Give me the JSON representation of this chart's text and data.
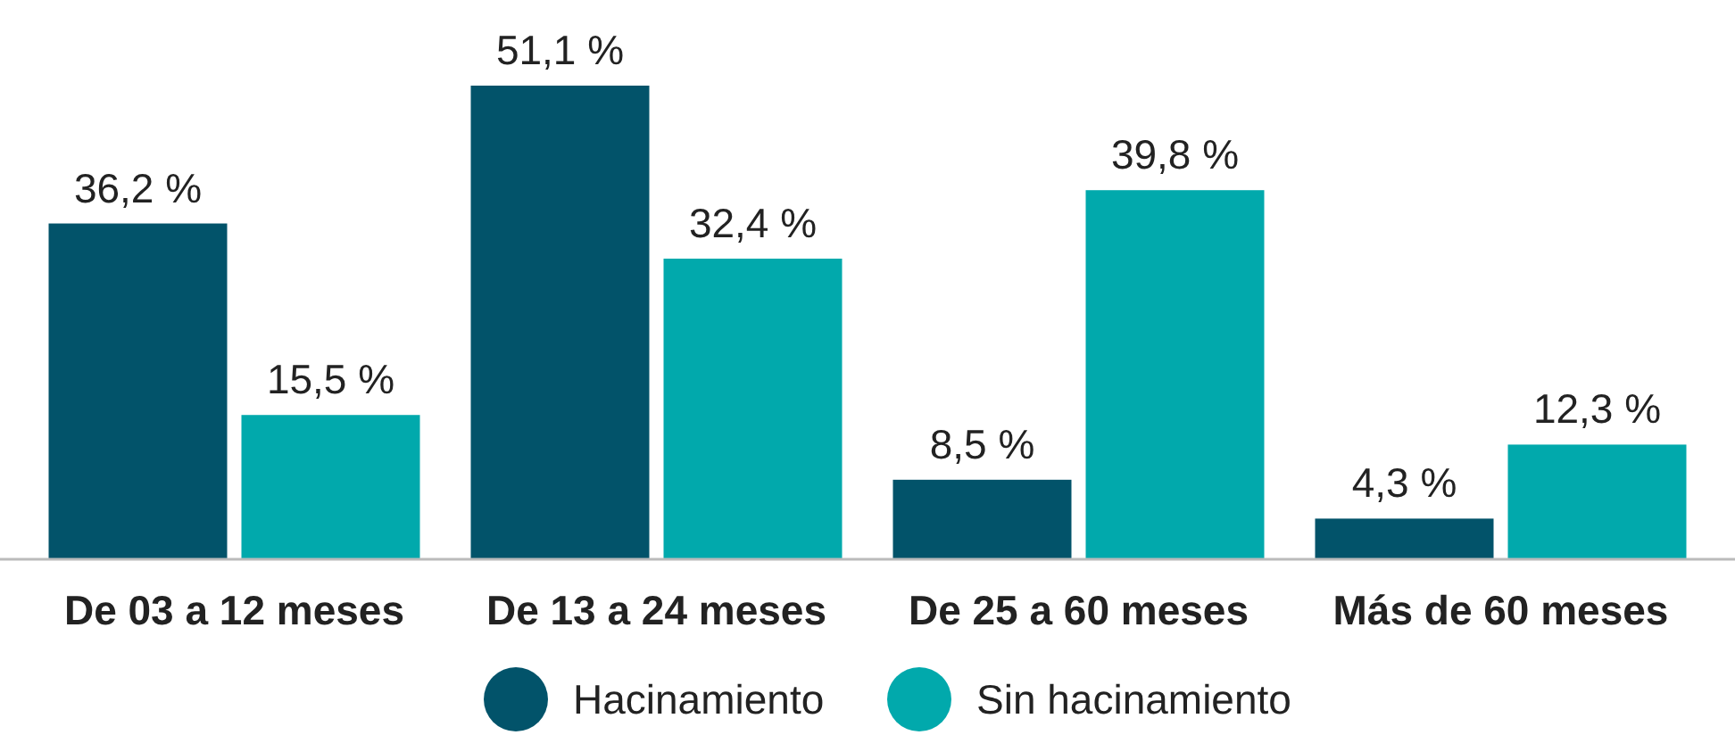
{
  "chart_data": {
    "type": "bar",
    "categories": [
      "De 03 a 12 meses",
      "De 13 a 24 meses",
      "De 25 a 60 meses",
      "Más de 60 meses"
    ],
    "series": [
      {
        "name": "Hacinamiento",
        "color": "#02536a",
        "values": [
          36.2,
          51.1,
          8.5,
          4.3
        ],
        "value_labels": [
          "36,2 %",
          "51,1 %",
          "8,5 %",
          "4,3 %"
        ]
      },
      {
        "name": "Sin hacinamiento",
        "color": "#01a9ac",
        "values": [
          15.5,
          32.4,
          39.8,
          12.3
        ],
        "value_labels": [
          "15,5 %",
          "32,4 %",
          "39,8 %",
          "12,3 %"
        ]
      }
    ],
    "legend": "bottom"
  }
}
